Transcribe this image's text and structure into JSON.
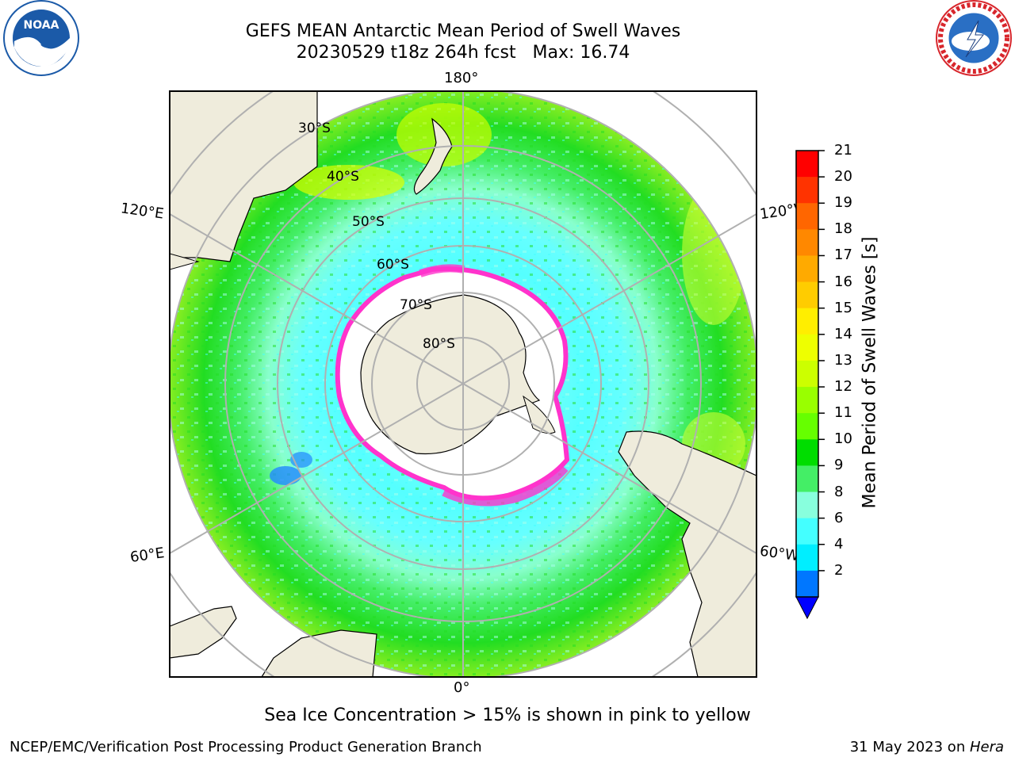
{
  "title_line1": "GEFS MEAN Antarctic Mean Period of Swell Waves",
  "title_line2": "20230529 t18z 264h fcst   Max: 16.74",
  "logos": {
    "left": {
      "icon": "noaa-logo",
      "text": "NOAA",
      "ring_text": "NATIONAL OCEANIC AND ATMOSPHERIC ADMINISTRATION · U.S. DEPARTMENT OF COMMERCE",
      "color": "#1b5aa8"
    },
    "right": {
      "icon": "nws-logo",
      "ring_text": "NATIONAL WEATHER SERVICE",
      "color": "#d8262c"
    }
  },
  "map": {
    "projection": "south-polar-stereographic",
    "longitude_labels": [
      "180°",
      "120°E",
      "120°W",
      "60°E",
      "60°W",
      "0°"
    ],
    "latitude_labels": [
      "30°S",
      "40°S",
      "50°S",
      "60°S",
      "70°S",
      "80°S"
    ],
    "land_color": "#efecdc",
    "ice_edge_color": "#ff33cc"
  },
  "colorbar": {
    "label": "Mean Period of Swell Waves [s]",
    "ticks": [
      "21",
      "20",
      "19",
      "18",
      "17",
      "16",
      "15",
      "14",
      "13",
      "12",
      "11",
      "10",
      "9",
      "8",
      "6",
      "4",
      "2"
    ],
    "colors_top_to_bottom": [
      "#ff0000",
      "#ff3300",
      "#ff6600",
      "#ff8800",
      "#ffaa00",
      "#ffcc00",
      "#ffee00",
      "#eeff00",
      "#ccff00",
      "#99ff00",
      "#66ff00",
      "#00dd00",
      "#44ee66",
      "#88ffdd",
      "#44ffff",
      "#00eeff",
      "#0077ff"
    ],
    "extend_color": "#0000ff"
  },
  "note": "Sea Ice Concentration > 15% is shown in pink to yellow",
  "footer": {
    "left": "NCEP/EMC/Verification Post Processing Product Generation Branch",
    "right_prefix": "31 May 2023 on ",
    "right_system": "Hera"
  }
}
